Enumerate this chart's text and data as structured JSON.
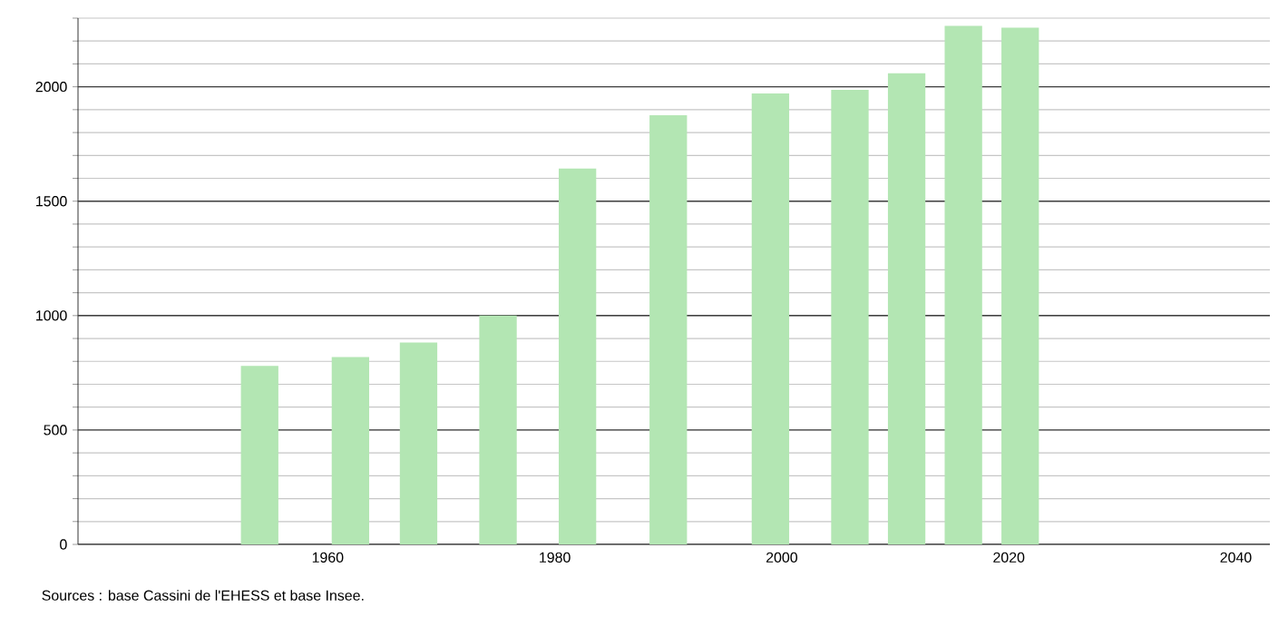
{
  "chart_data": {
    "type": "bar",
    "x": [
      1954,
      1962,
      1968,
      1975,
      1982,
      1990,
      1999,
      2006,
      2011,
      2016,
      2021
    ],
    "values": [
      780,
      819,
      882,
      1000,
      1643,
      1876,
      1971,
      1987,
      2059,
      2266,
      2258
    ],
    "color": "#b3e6b3",
    "xlim": [
      1938,
      2043
    ],
    "xticks": [
      1960,
      1980,
      2000,
      2020,
      2040
    ],
    "ylim": [
      0,
      2300
    ],
    "yticks": [
      0,
      {
        "value": 100,
        "label": null
      },
      {
        "value": 200,
        "label": null
      },
      {
        "value": 300,
        "label": null
      },
      {
        "value": 400,
        "label": null
      },
      500,
      {
        "value": 600,
        "label": null
      },
      {
        "value": 700,
        "label": null
      },
      {
        "value": 800,
        "label": null
      },
      {
        "value": 900,
        "label": null
      },
      1000,
      {
        "value": 1100,
        "label": null
      },
      {
        "value": 1200,
        "label": null
      },
      {
        "value": 1300,
        "label": null
      },
      {
        "value": 1400,
        "label": null
      },
      1500,
      {
        "value": 1600,
        "label": null
      },
      {
        "value": 1700,
        "label": null
      },
      {
        "value": 1800,
        "label": null
      },
      {
        "value": 1900,
        "label": null
      },
      2000,
      {
        "value": 2100,
        "label": null
      },
      {
        "value": 2200,
        "label": null
      },
      {
        "value": 2300,
        "label": null
      }
    ],
    "grid": "y",
    "annotations": [
      "Sources : base Cassini de l'EHESS et base Insee."
    ]
  }
}
